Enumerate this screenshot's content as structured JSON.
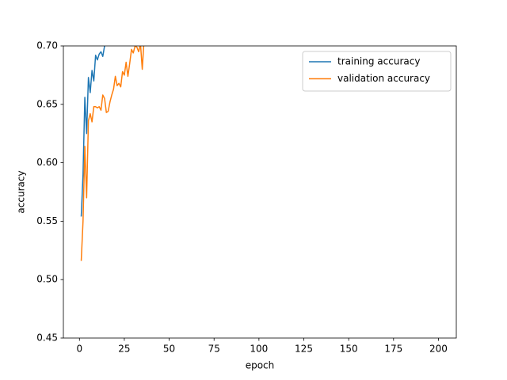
{
  "chart_data": {
    "type": "line",
    "xlabel": "epoch",
    "ylabel": "accuracy",
    "xlim": [
      -8.95,
      209.95
    ],
    "ylim": [
      0.45,
      0.7
    ],
    "xticks": [
      0,
      25,
      50,
      75,
      100,
      125,
      150,
      175,
      200
    ],
    "yticks": [
      0.45,
      {
        "value": 0.5,
        "label": "0.50"
      },
      0.55,
      {
        "value": 0.6,
        "label": "0.60"
      },
      0.65,
      {
        "value": 0.7,
        "label": "0.70"
      }
    ],
    "legend": "upper right",
    "series": [
      {
        "name": "training accuracy",
        "color": "#1f77b4",
        "x": [
          1,
          2,
          3,
          4,
          5,
          6,
          7,
          8,
          9,
          10,
          11,
          12,
          13,
          14,
          15
        ],
        "values": [
          0.554,
          0.59,
          0.656,
          0.625,
          0.673,
          0.66,
          0.679,
          0.67,
          0.692,
          0.688,
          0.693,
          0.695,
          0.691,
          0.7,
          0.705
        ]
      },
      {
        "name": "validation accuracy",
        "color": "#ff7f0e",
        "x": [
          1,
          2,
          3,
          4,
          5,
          6,
          7,
          8,
          9,
          10,
          11,
          12,
          13,
          14,
          15,
          16,
          17,
          18,
          19,
          20,
          21,
          22,
          23,
          24,
          25,
          26,
          27,
          28,
          29,
          30,
          31,
          32,
          33,
          34,
          35,
          36
        ],
        "values": [
          0.516,
          0.55,
          0.614,
          0.57,
          0.636,
          0.642,
          0.635,
          0.648,
          0.648,
          0.647,
          0.648,
          0.645,
          0.658,
          0.655,
          0.643,
          0.644,
          0.652,
          0.658,
          0.663,
          0.674,
          0.666,
          0.668,
          0.665,
          0.678,
          0.675,
          0.686,
          0.674,
          0.685,
          0.697,
          0.694,
          0.7,
          0.699,
          0.695,
          0.702,
          0.68,
          0.705
        ]
      }
    ]
  }
}
